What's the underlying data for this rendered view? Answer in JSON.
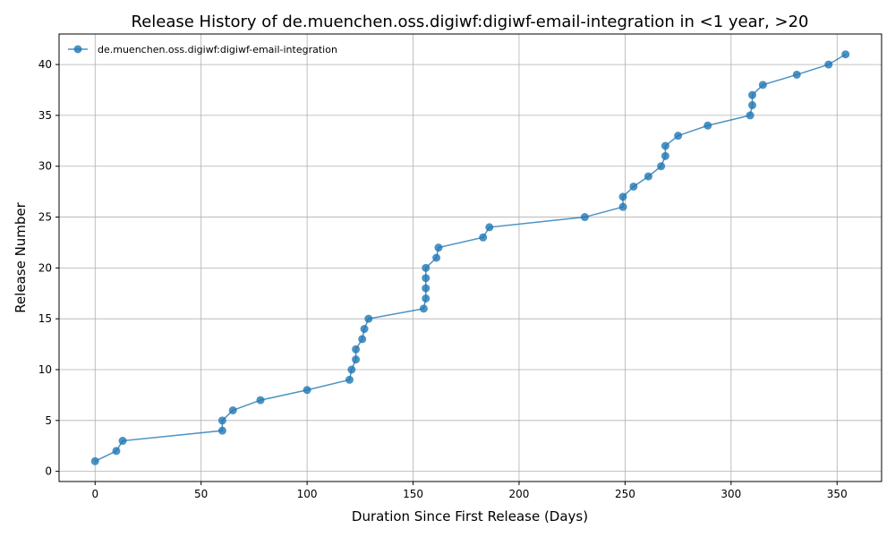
{
  "chart_data": {
    "type": "line",
    "title": "Release History of de.muenchen.oss.digiwf:digiwf-email-integration in <1 year, >20",
    "xlabel": "Duration Since First Release (Days)",
    "ylabel": "Release Number",
    "xlim": [
      -17,
      371
    ],
    "ylim": [
      -1,
      43
    ],
    "xticks": [
      0,
      50,
      100,
      150,
      200,
      250,
      300,
      350
    ],
    "yticks": [
      0,
      5,
      10,
      15,
      20,
      25,
      30,
      35,
      40
    ],
    "grid": true,
    "legend_position": "top-left",
    "series": [
      {
        "name": "de.muenchen.oss.digiwf:digiwf-email-integration",
        "color": "#1f77b4",
        "marker": "circle",
        "x": [
          0,
          10,
          13,
          60,
          60,
          65,
          78,
          100,
          120,
          121,
          123,
          123,
          126,
          127,
          129,
          155,
          156,
          156,
          156,
          156,
          161,
          162,
          183,
          186,
          231,
          249,
          249,
          254,
          261,
          267,
          269,
          269,
          275,
          289,
          309,
          310,
          310,
          315,
          331,
          346,
          354
        ],
        "y": [
          1,
          2,
          3,
          4,
          5,
          6,
          7,
          8,
          9,
          10,
          11,
          12,
          13,
          14,
          15,
          16,
          17,
          18,
          19,
          20,
          21,
          22,
          23,
          24,
          25,
          26,
          27,
          28,
          29,
          30,
          31,
          32,
          33,
          34,
          35,
          36,
          37,
          38,
          39,
          40,
          41
        ]
      }
    ]
  }
}
